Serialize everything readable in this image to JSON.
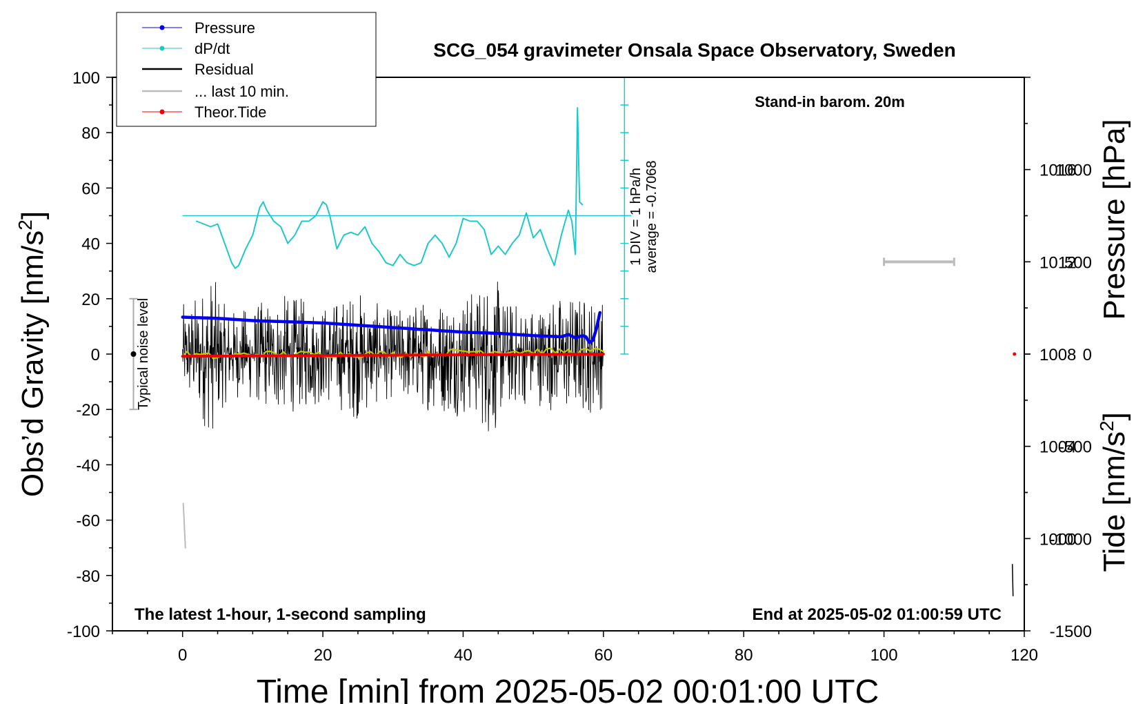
{
  "chart_data": {
    "type": "line",
    "title": "SCG_054 gravimeter Onsala Space Observatory, Sweden",
    "xlabel": "Time [min] from 2025-05-02 00:01:00 UTC",
    "ylabel_left": "Obs’d Gravity [nm/s",
    "ylabel_left_sup": "2",
    "ylabel_left_tail": "]",
    "ylabel_right_top": "Pressure [hPa]",
    "ylabel_right_bottom": "Tide [nm/s",
    "ylabel_right_bottom_sup": "2",
    "ylabel_right_bottom_tail": "]",
    "xlim": [
      -10,
      120
    ],
    "ylim": [
      -100,
      100
    ],
    "pressure_lim": [
      996,
      1020
    ],
    "tide_lim": [
      -1500,
      1500
    ],
    "x_ticks": [
      "0",
      "20",
      "40",
      "60",
      "80",
      "100",
      "120"
    ],
    "y_ticks": [
      "-100",
      "-80",
      "-60",
      "-40",
      "-20",
      "0",
      "20",
      "40",
      "60",
      "80",
      "100"
    ],
    "pressure_ticks": [
      "1000",
      "1004",
      "1008",
      "1012",
      "1016"
    ],
    "tide_ticks": [
      "-1500",
      "-1000",
      "-500",
      "0",
      "500",
      "1000"
    ],
    "grid": false,
    "legend": {
      "placement": "top-left",
      "entries": [
        {
          "label": "Pressure",
          "color": "#0000ee",
          "marker": "dot"
        },
        {
          "label": "dP/dt",
          "color": "#1ec8c8",
          "marker": "dot"
        },
        {
          "label": "Residual",
          "color": "#000000",
          "marker": "line"
        },
        {
          "label": "... last 10 min.",
          "color": "#bbbbbb",
          "marker": "line"
        },
        {
          "label": "Theor.Tide",
          "color": "#ee0000",
          "marker": "dot"
        }
      ]
    },
    "annotations": {
      "barometer_note": "Stand-in barom. 20m",
      "scale_line1": "1 DIV = 1 hPa/h",
      "scale_line2": "average = -0.7068",
      "noise_label": "Typical noise level",
      "bottom_left": "The latest 1-hour, 1-second sampling",
      "bottom_right": "End at 2025-05-02 01:00:59 UTC"
    },
    "series": [
      {
        "name": "Pressure",
        "axis": "pressure",
        "color": "#0000ee",
        "x": [
          0,
          5,
          10,
          15,
          20,
          25,
          30,
          35,
          40,
          45,
          50,
          54,
          55,
          56,
          57,
          57.5,
          58,
          58.5,
          59,
          59.5
        ],
        "values": [
          1009.6,
          1009.55,
          1009.45,
          1009.4,
          1009.35,
          1009.25,
          1009.15,
          1009.05,
          1008.95,
          1008.9,
          1008.8,
          1008.75,
          1008.85,
          1008.7,
          1008.8,
          1008.75,
          1008.5,
          1008.6,
          1009.1,
          1009.8
        ]
      },
      {
        "name": "dP/dt",
        "axis": "gravity",
        "color": "#1ec8c8",
        "x": [
          2,
          3,
          4,
          5,
          6,
          7,
          7.5,
          8,
          9,
          10,
          11,
          11.5,
          12,
          13,
          14,
          15,
          16,
          17,
          18,
          19,
          20,
          20.5,
          21,
          22,
          23,
          24,
          25,
          26,
          27,
          28,
          29,
          30,
          31,
          32,
          33,
          34,
          35,
          36,
          37,
          38,
          39,
          40,
          41,
          42,
          43,
          44,
          45,
          46,
          47,
          48,
          49,
          50,
          51,
          52,
          53,
          54,
          55,
          55.5,
          56,
          56.3,
          56.6,
          57
        ],
        "values": [
          48,
          47,
          46,
          47,
          40,
          33,
          31,
          32,
          38,
          43,
          53,
          55,
          52,
          48,
          46,
          40,
          43,
          48,
          48,
          50,
          55,
          54,
          50,
          38,
          43,
          44,
          43,
          46,
          40,
          37,
          33,
          32,
          36,
          33,
          32,
          33,
          40,
          43,
          40,
          35,
          40,
          49,
          48,
          48,
          45,
          36,
          39,
          36,
          40,
          43,
          51,
          42,
          45,
          38,
          32,
          43,
          52,
          48,
          36,
          89,
          55,
          54
        ]
      },
      {
        "name": "Residual",
        "axis": "gravity",
        "color": "#000000",
        "envelope": {
          "x": [
            0,
            2,
            4,
            5,
            6,
            8,
            10,
            14,
            18,
            20,
            22,
            25,
            28,
            30,
            34,
            38,
            42,
            44,
            46,
            50,
            54,
            58,
            60
          ],
          "amplitude": [
            18,
            22,
            30,
            25,
            18,
            16,
            18,
            22,
            20,
            18,
            20,
            24,
            18,
            16,
            20,
            22,
            24,
            32,
            20,
            18,
            22,
            22,
            20
          ]
        }
      },
      {
        "name": "Residual smoothed",
        "axis": "gravity",
        "color": "#c8c800",
        "x": [
          0,
          5,
          10,
          15,
          20,
          25,
          30,
          35,
          40,
          45,
          50,
          55,
          60
        ],
        "values": [
          0,
          -1,
          0,
          0,
          0,
          0,
          0,
          0,
          1,
          1,
          1,
          1,
          1
        ]
      },
      {
        "name": "... last 10 min.",
        "axis": "gravity",
        "color": "#bbbbbb",
        "x": [
          0.1,
          0.4
        ],
        "values": [
          -54,
          -70
        ]
      },
      {
        "name": "Theor.Tide",
        "axis": "tide",
        "color": "#ee0000",
        "x": [
          0,
          10,
          20,
          30,
          40,
          50,
          60
        ],
        "values": [
          -12,
          -10,
          -8,
          -6,
          -4,
          -2,
          0
        ]
      }
    ],
    "noise_level": {
      "x": -7,
      "center": 0,
      "half_range": 20
    },
    "scale_bar": {
      "x": 63,
      "bottom": 0,
      "top": 100,
      "baseline": 50
    },
    "gray_bar": {
      "x": [
        100,
        110
      ],
      "y": 500,
      "axis": "tide"
    },
    "right_markers": {
      "pressure_tick": {
        "x": 118.3,
        "y": [
          997.5,
          998.9
        ]
      },
      "tide_dot": {
        "x": 118.6,
        "y": 0
      }
    }
  }
}
